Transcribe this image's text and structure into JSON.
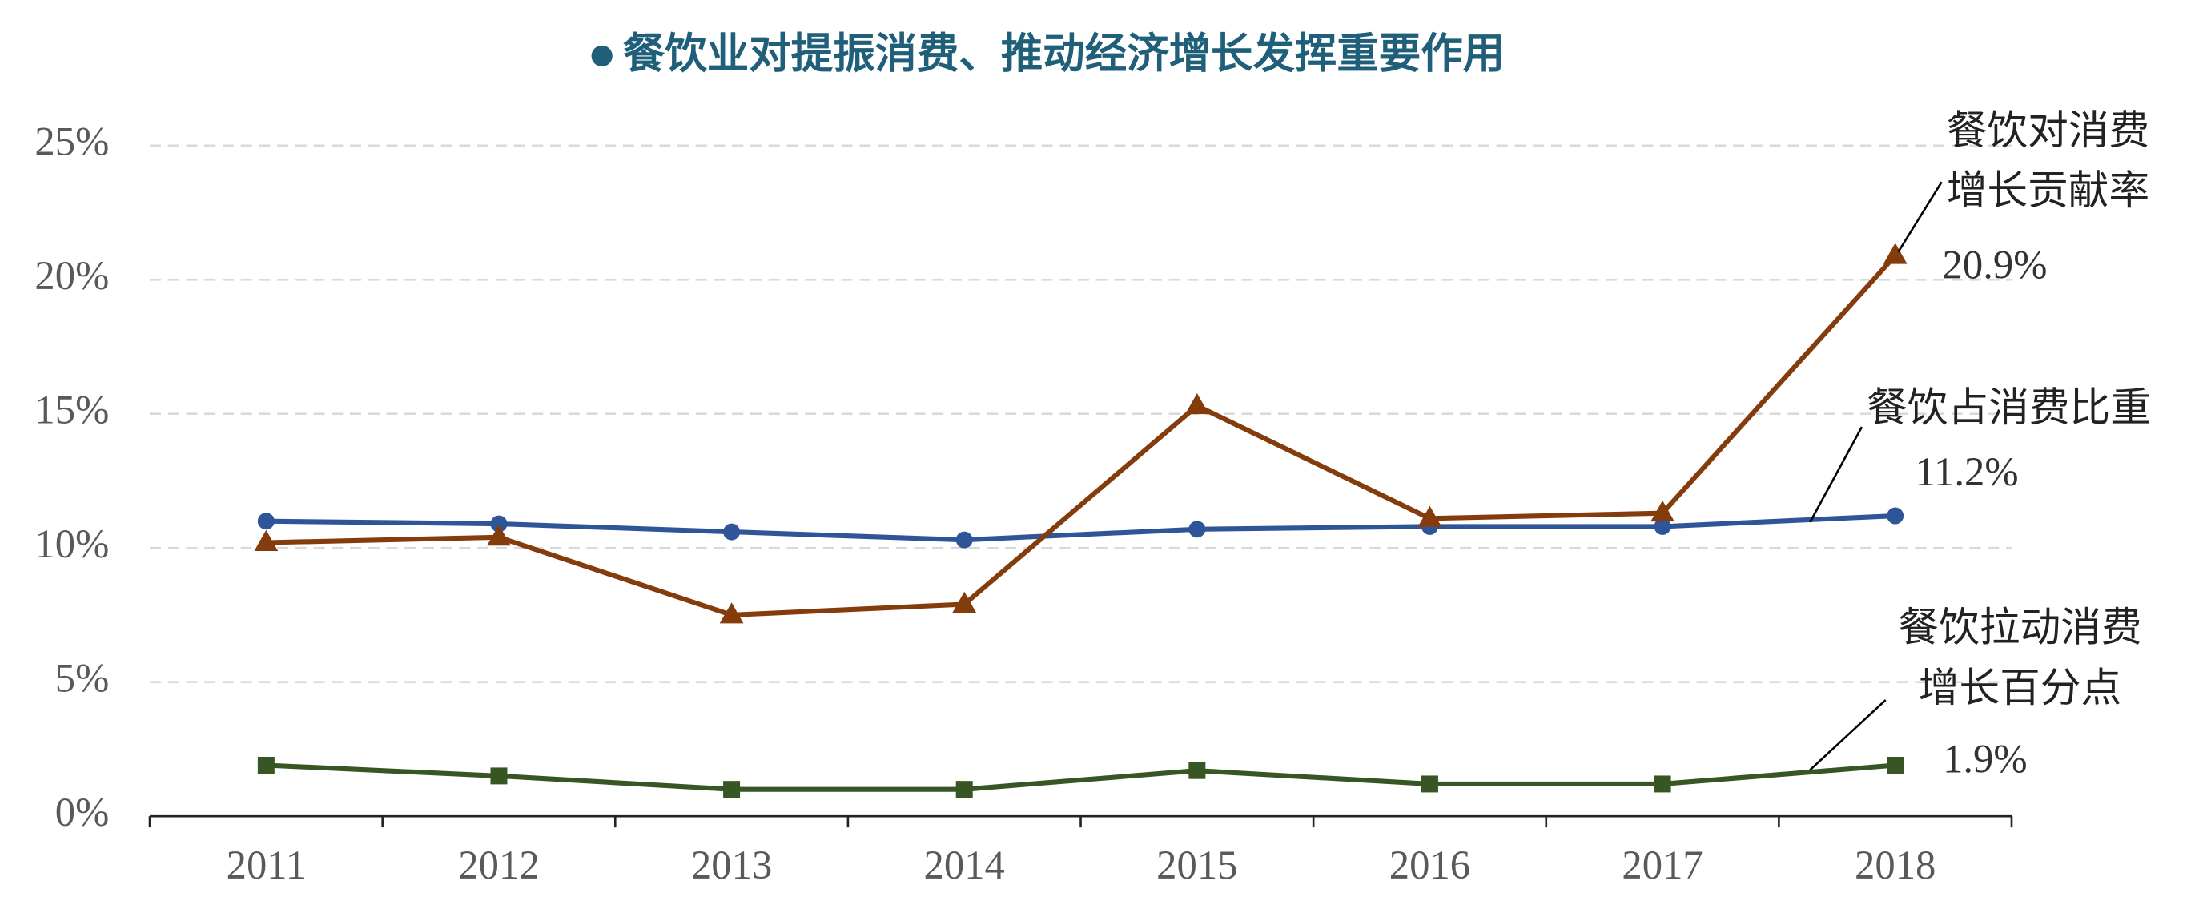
{
  "chart_data": {
    "type": "line",
    "title": "餐饮业对提振消费、推动经济增长发挥重要作用",
    "categories": [
      "2011",
      "2012",
      "2013",
      "2014",
      "2015",
      "2016",
      "2017",
      "2018"
    ],
    "series": [
      {
        "name": "餐饮占消费比重",
        "color": "#2e5597",
        "marker": "circle",
        "values": [
          11.0,
          10.9,
          10.6,
          10.3,
          10.7,
          10.8,
          10.8,
          11.2
        ],
        "value_labels": [
          null,
          null,
          null,
          null,
          null,
          null,
          null,
          "11.2%"
        ]
      },
      {
        "name": "餐饮对消费增长贡献率",
        "color": "#843c0c",
        "marker": "triangle",
        "values": [
          10.2,
          10.4,
          7.5,
          7.9,
          15.3,
          11.1,
          11.3,
          20.9
        ],
        "value_labels": [
          null,
          null,
          null,
          null,
          null,
          null,
          null,
          "20.9%"
        ]
      },
      {
        "name": "餐饮拉动消费增长百分点",
        "color": "#375623",
        "marker": "square",
        "values": [
          1.9,
          1.5,
          1.0,
          1.0,
          1.7,
          1.2,
          1.2,
          1.9
        ],
        "value_labels": [
          null,
          null,
          null,
          null,
          null,
          null,
          null,
          "1.9%"
        ]
      }
    ],
    "ylim": [
      0,
      25
    ],
    "yticks": [
      {
        "value": 0,
        "label": "0%"
      },
      {
        "value": 5,
        "label": "5%"
      },
      {
        "value": 10,
        "label": "10%"
      },
      {
        "value": 15,
        "label": "15%"
      },
      {
        "value": 20,
        "label": "20%"
      },
      {
        "value": 25,
        "label": "25%"
      }
    ],
    "grid": true
  }
}
